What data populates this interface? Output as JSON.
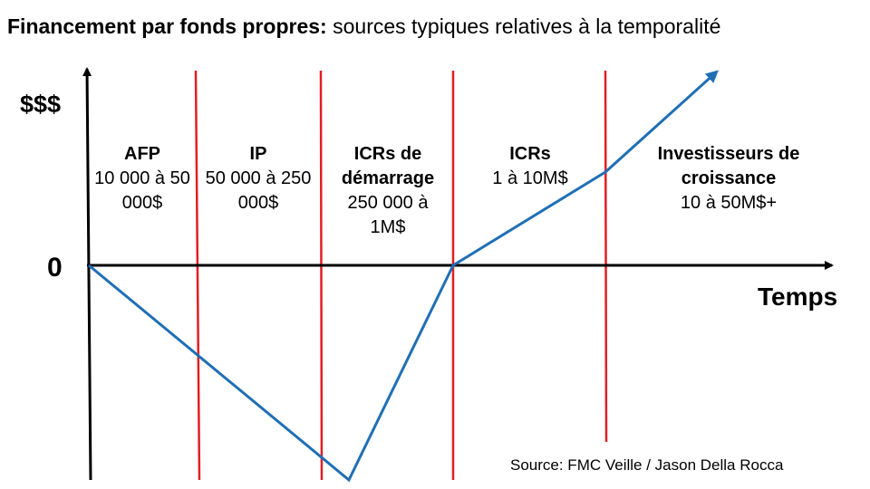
{
  "title": {
    "bold": "Financement par fonds propres:",
    "rest": " sources typiques relatives à la temporalité"
  },
  "axes": {
    "y_label": "$$$",
    "zero_label": "0",
    "x_label": "Temps"
  },
  "stages": [
    {
      "name": "AFP",
      "range": "10 000 à 50 000$"
    },
    {
      "name": "IP",
      "range": "50 000 à 250 000$"
    },
    {
      "name": "ICRs de démarrage",
      "range": "250 000 à 1M$"
    },
    {
      "name": "ICRs",
      "range": "1 à 10M$"
    },
    {
      "name": "Investisseurs de croissance",
      "range": "10 à 50M$+"
    }
  ],
  "source": "Source: FMC Veille / Jason Della Rocca",
  "colors": {
    "axis": "#000000",
    "divider": "#e31e24",
    "curve": "#1f6fb5"
  }
}
